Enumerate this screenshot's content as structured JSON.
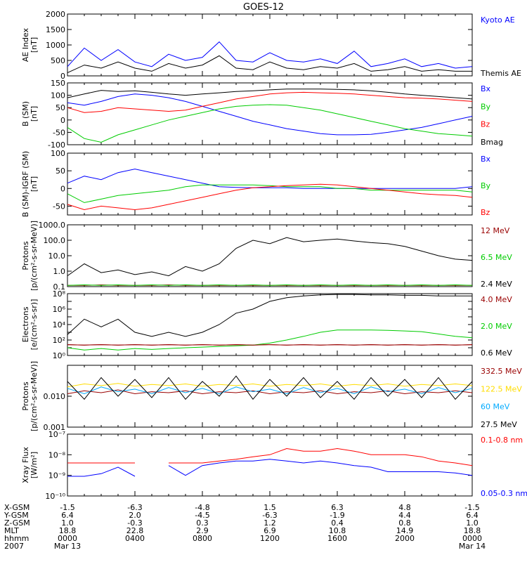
{
  "title": "GOES-12",
  "colors": {
    "black": "#000000",
    "blue": "#0000ff",
    "red": "#ff0000",
    "green": "#00cc00",
    "darkred": "#990000",
    "yellow": "#ffdd00",
    "cyan": "#00aaff"
  },
  "chart_data": [
    {
      "id": "ae",
      "type": "line",
      "ylabel_lines": [
        "AE Index",
        "[nT]"
      ],
      "ylim": [
        0,
        2000
      ],
      "yticks": [
        "0",
        "500",
        "1000",
        "1500",
        "2000"
      ],
      "ytick_values": [
        0,
        500,
        1000,
        1500,
        2000
      ],
      "scale": "linear",
      "x_hours": [
        0,
        1,
        2,
        3,
        4,
        5,
        6,
        7,
        8,
        9,
        10,
        11,
        12,
        13,
        14,
        15,
        16,
        17,
        18,
        19,
        20,
        21,
        22,
        23,
        24
      ],
      "series": [
        {
          "name": "Kyoto AE",
          "color": "#0000ff",
          "values": [
            300,
            900,
            500,
            850,
            450,
            300,
            700,
            500,
            600,
            1100,
            500,
            450,
            750,
            500,
            450,
            550,
            400,
            800,
            300,
            400,
            550,
            300,
            400,
            250,
            300
          ]
        },
        {
          "name": "Themis AE",
          "color": "#000000",
          "values": [
            100,
            350,
            250,
            450,
            250,
            150,
            400,
            250,
            350,
            650,
            250,
            200,
            450,
            250,
            200,
            300,
            250,
            400,
            150,
            200,
            300,
            150,
            200,
            150,
            150
          ]
        }
      ]
    },
    {
      "id": "bgsm",
      "type": "line",
      "ylabel_lines": [
        "B (SM)",
        "[nT]"
      ],
      "ylim": [
        -100,
        150
      ],
      "yticks": [
        "-100",
        "-50",
        "0",
        "50",
        "100",
        "150"
      ],
      "ytick_values": [
        -100,
        -50,
        0,
        50,
        100,
        150
      ],
      "scale": "linear",
      "x_hours": [
        0,
        1,
        2,
        3,
        4,
        5,
        6,
        7,
        8,
        9,
        10,
        11,
        12,
        13,
        14,
        15,
        16,
        17,
        18,
        19,
        20,
        21,
        22,
        23,
        24
      ],
      "series": [
        {
          "name": "Bx",
          "color": "#0000ff",
          "values": [
            70,
            60,
            75,
            95,
            105,
            100,
            90,
            75,
            55,
            35,
            15,
            -5,
            -20,
            -35,
            -45,
            -55,
            -60,
            -60,
            -58,
            -50,
            -40,
            -30,
            -15,
            0,
            15
          ]
        },
        {
          "name": "By",
          "color": "#00cc00",
          "values": [
            -30,
            -75,
            -90,
            -60,
            -40,
            -20,
            0,
            15,
            30,
            45,
            55,
            60,
            62,
            60,
            50,
            40,
            25,
            10,
            -5,
            -20,
            -35,
            -45,
            -55,
            -60,
            -65
          ]
        },
        {
          "name": "Bz",
          "color": "#ff0000",
          "values": [
            50,
            30,
            35,
            50,
            45,
            40,
            35,
            40,
            55,
            70,
            85,
            95,
            105,
            110,
            112,
            110,
            108,
            105,
            100,
            95,
            90,
            88,
            85,
            80,
            75
          ]
        },
        {
          "name": "Bmag",
          "color": "#000000",
          "values": [
            90,
            105,
            120,
            115,
            118,
            112,
            105,
            100,
            105,
            110,
            115,
            118,
            122,
            125,
            125,
            125,
            124,
            122,
            118,
            112,
            105,
            100,
            95,
            90,
            85
          ]
        }
      ]
    },
    {
      "id": "bigrf",
      "type": "line",
      "ylabel_lines": [
        "B (SM)-IGRF (SM)",
        "[nT]"
      ],
      "ylim": [
        -75,
        100
      ],
      "yticks": [
        "-50",
        "0",
        "50",
        "100"
      ],
      "ytick_values": [
        -50,
        0,
        50,
        100
      ],
      "scale": "linear",
      "x_hours": [
        0,
        1,
        2,
        3,
        4,
        5,
        6,
        7,
        8,
        9,
        10,
        11,
        12,
        13,
        14,
        15,
        16,
        17,
        18,
        19,
        20,
        21,
        22,
        23,
        24
      ],
      "series": [
        {
          "name": "Bx",
          "color": "#0000ff",
          "values": [
            15,
            35,
            25,
            45,
            55,
            45,
            35,
            25,
            15,
            5,
            3,
            2,
            2,
            2,
            0,
            0,
            0,
            0,
            0,
            0,
            0,
            0,
            0,
            0,
            5
          ]
        },
        {
          "name": "By",
          "color": "#00cc00",
          "values": [
            -15,
            -40,
            -30,
            -20,
            -15,
            -10,
            -5,
            5,
            10,
            10,
            10,
            10,
            8,
            5,
            5,
            5,
            0,
            0,
            -5,
            -5,
            -5,
            -5,
            -5,
            -5,
            -10
          ]
        },
        {
          "name": "Bz",
          "color": "#ff0000",
          "values": [
            -45,
            -60,
            -50,
            -55,
            -60,
            -55,
            -45,
            -35,
            -25,
            -15,
            -5,
            2,
            5,
            8,
            10,
            12,
            10,
            5,
            0,
            -5,
            -10,
            -15,
            -18,
            -20,
            -25
          ]
        }
      ]
    },
    {
      "id": "protons_low",
      "type": "line",
      "ylabel_lines": [
        "Protons",
        "[p/(cm²-s-sr-MeV)]"
      ],
      "ylim": [
        0.1,
        1000
      ],
      "yticks": [
        "0.1",
        "1.0",
        "10.0",
        "100.0",
        "1000.0"
      ],
      "ytick_values": [
        0.1,
        1,
        10,
        100,
        1000
      ],
      "scale": "log",
      "x_hours": [
        0,
        1,
        2,
        3,
        4,
        5,
        6,
        7,
        8,
        9,
        10,
        11,
        12,
        13,
        14,
        15,
        16,
        17,
        18,
        19,
        20,
        21,
        22,
        23,
        24
      ],
      "series": [
        {
          "name": "12 MeV",
          "color": "#990000",
          "values": [
            0.12,
            0.12,
            0.13,
            0.12,
            0.12,
            0.12,
            0.13,
            0.12,
            0.12,
            0.12,
            0.12,
            0.12,
            0.12,
            0.12,
            0.12,
            0.12,
            0.12,
            0.12,
            0.12,
            0.12,
            0.12,
            0.12,
            0.12,
            0.12,
            0.12
          ]
        },
        {
          "name": "6.5 MeV",
          "color": "#00cc00",
          "values": [
            0.12,
            0.13,
            0.12,
            0.13,
            0.12,
            0.13,
            0.12,
            0.13,
            0.12,
            0.13,
            0.12,
            0.13,
            0.12,
            0.13,
            0.12,
            0.13,
            0.12,
            0.13,
            0.12,
            0.13,
            0.12,
            0.13,
            0.12,
            0.13,
            0.12
          ]
        },
        {
          "name": "2.4 MeV",
          "color": "#000000",
          "values": [
            0.5,
            3,
            0.8,
            1.2,
            0.6,
            0.9,
            0.5,
            2,
            1,
            3,
            30,
            100,
            60,
            150,
            80,
            100,
            120,
            90,
            70,
            60,
            40,
            20,
            10,
            6,
            5
          ]
        }
      ]
    },
    {
      "id": "electrons",
      "type": "line",
      "ylabel_lines": [
        "Electrons",
        "[e/(cm²-s-sr)]"
      ],
      "ylim": [
        1,
        100000000
      ],
      "yticks": [
        "10⁰",
        "10¹",
        "10²",
        "10³",
        "10⁴",
        "10⁵",
        "10⁶",
        "10⁷",
        "10⁸"
      ],
      "ytick_values": [
        1,
        10,
        100,
        1000,
        10000,
        100000,
        1000000,
        10000000,
        100000000
      ],
      "ytick_label_values": [
        1,
        100,
        10000,
        1000000,
        100000000
      ],
      "ytick_label_text": [
        "10⁰",
        "10²",
        "10⁴",
        "10⁶",
        "10⁸"
      ],
      "scale": "log",
      "x_hours": [
        0,
        1,
        2,
        3,
        4,
        5,
        6,
        7,
        8,
        9,
        10,
        11,
        12,
        13,
        14,
        15,
        16,
        17,
        18,
        19,
        20,
        21,
        22,
        23,
        24
      ],
      "series": [
        {
          "name": "4.0 MeV",
          "color": "#990000",
          "values": [
            25,
            22,
            25,
            22,
            25,
            22,
            25,
            22,
            25,
            22,
            25,
            22,
            25,
            22,
            25,
            22,
            25,
            22,
            25,
            22,
            25,
            22,
            25,
            22,
            25
          ]
        },
        {
          "name": "2.0 MeV",
          "color": "#00cc00",
          "values": [
            10,
            5,
            8,
            5,
            8,
            6,
            8,
            10,
            12,
            15,
            18,
            22,
            40,
            100,
            300,
            1000,
            2000,
            2000,
            2000,
            1800,
            1500,
            1200,
            600,
            300,
            200
          ]
        },
        {
          "name": "0.6 MeV",
          "color": "#000000",
          "values": [
            500,
            50000,
            5000,
            50000,
            1000,
            300,
            1000,
            300,
            1000,
            10000,
            300000,
            1000000,
            10000000,
            30000000,
            50000000,
            70000000,
            80000000,
            80000000,
            70000000,
            70000000,
            60000000,
            60000000,
            50000000,
            50000000,
            50000000
          ]
        },
        {
          "name": "",
          "color": "#990000",
          "values": [
            25,
            22,
            25,
            22,
            25,
            22,
            25,
            22,
            25,
            22,
            25,
            22,
            25,
            22,
            25,
            22,
            25,
            22,
            25,
            22,
            25,
            22,
            25,
            22,
            25
          ]
        }
      ]
    },
    {
      "id": "protons_high",
      "type": "line",
      "ylabel_lines": [
        "Protons",
        "[p/(cm²-s-sr-MeV)]"
      ],
      "ylim": [
        0.001,
        0.1
      ],
      "yticks": [
        "0.001",
        "0.010"
      ],
      "ytick_values": [
        0.001,
        0.01
      ],
      "scale": "log",
      "x_hours": [
        0,
        1,
        2,
        3,
        4,
        5,
        6,
        7,
        8,
        9,
        10,
        11,
        12,
        13,
        14,
        15,
        16,
        17,
        18,
        19,
        20,
        21,
        22,
        23,
        24
      ],
      "series": [
        {
          "name": "332.5 MeV",
          "color": "#990000",
          "values": [
            0.012,
            0.015,
            0.013,
            0.016,
            0.012,
            0.014,
            0.013,
            0.015,
            0.012,
            0.014,
            0.013,
            0.015,
            0.012,
            0.014,
            0.013,
            0.015,
            0.012,
            0.014,
            0.013,
            0.015,
            0.012,
            0.014,
            0.013,
            0.015,
            0.013
          ]
        },
        {
          "name": "122.5 MeV",
          "color": "#ffdd00",
          "values": [
            0.02,
            0.025,
            0.022,
            0.026,
            0.021,
            0.024,
            0.022,
            0.025,
            0.021,
            0.024,
            0.022,
            0.025,
            0.021,
            0.024,
            0.022,
            0.025,
            0.021,
            0.024,
            0.022,
            0.025,
            0.021,
            0.024,
            0.022,
            0.025,
            0.022
          ]
        },
        {
          "name": "60 MeV",
          "color": "#00aaff",
          "values": [
            0.018,
            0.012,
            0.02,
            0.014,
            0.017,
            0.012,
            0.019,
            0.013,
            0.018,
            0.012,
            0.02,
            0.014,
            0.017,
            0.012,
            0.019,
            0.013,
            0.018,
            0.012,
            0.02,
            0.014,
            0.017,
            0.012,
            0.019,
            0.013,
            0.018
          ]
        },
        {
          "name": "27.5 MeV",
          "color": "#000000",
          "values": [
            0.03,
            0.008,
            0.04,
            0.01,
            0.035,
            0.009,
            0.04,
            0.008,
            0.03,
            0.01,
            0.045,
            0.008,
            0.035,
            0.01,
            0.04,
            0.009,
            0.03,
            0.008,
            0.04,
            0.01,
            0.035,
            0.009,
            0.04,
            0.008,
            0.03
          ]
        }
      ]
    },
    {
      "id": "xray",
      "type": "line",
      "ylabel_lines": [
        "Xray Flux",
        "[W/m²]"
      ],
      "ylim": [
        1e-10,
        1e-07
      ],
      "yticks": [
        "10⁻¹⁰",
        "10⁻⁹",
        "10⁻⁸",
        "10⁻⁷"
      ],
      "ytick_values": [
        1e-10,
        1e-09,
        1e-08,
        1e-07
      ],
      "scale": "log",
      "x_hours": [
        0,
        1,
        2,
        3,
        4,
        5,
        6,
        7,
        8,
        9,
        10,
        11,
        12,
        13,
        14,
        15,
        16,
        17,
        18,
        19,
        20,
        21,
        22,
        23,
        24
      ],
      "series": [
        {
          "name": "0.1-0.8 nm",
          "color": "#ff0000",
          "values": [
            4e-09,
            4e-09,
            4e-09,
            4e-09,
            4e-09,
            null,
            4e-09,
            4e-09,
            4e-09,
            5e-09,
            6e-09,
            8e-09,
            1e-08,
            2e-08,
            1.5e-08,
            1.5e-08,
            2e-08,
            1.5e-08,
            1e-08,
            1e-08,
            1e-08,
            8e-09,
            5e-09,
            4e-09,
            3e-09
          ]
        },
        {
          "name": "0.05-0.3 nm",
          "color": "#0000ff",
          "values": [
            9e-10,
            9e-10,
            1.2e-09,
            2.5e-09,
            9e-10,
            null,
            3e-09,
            1e-09,
            3e-09,
            4e-09,
            5e-09,
            5e-09,
            6e-09,
            5e-09,
            4e-09,
            5e-09,
            4e-09,
            3e-09,
            2.5e-09,
            1.5e-09,
            1.5e-09,
            1.5e-09,
            1.5e-09,
            1.3e-09,
            1e-09
          ]
        }
      ]
    }
  ],
  "ephemeris": {
    "row_labels": [
      "X-GSM",
      "Y-GSM",
      "Z-GSM",
      "MLT",
      "hhmm",
      "2007"
    ],
    "columns": [
      [
        "-1.5",
        "6.4",
        "1.0",
        "18.8",
        "0000",
        "Mar 13"
      ],
      [
        "-6.3",
        "2.0",
        "-0.3",
        "22.8",
        "0400",
        ""
      ],
      [
        "-4.8",
        "-4.5",
        "0.3",
        "2.9",
        "0800",
        ""
      ],
      [
        "1.5",
        "-6.3",
        "1.2",
        "6.9",
        "1200",
        ""
      ],
      [
        "6.3",
        "-1.9",
        "0.4",
        "10.8",
        "1600",
        ""
      ],
      [
        "4.8",
        "4.4",
        "0.8",
        "14.9",
        "2000",
        ""
      ],
      [
        "-1.5",
        "6.4",
        "1.0",
        "18.8",
        "0000",
        "Mar 14"
      ]
    ]
  }
}
